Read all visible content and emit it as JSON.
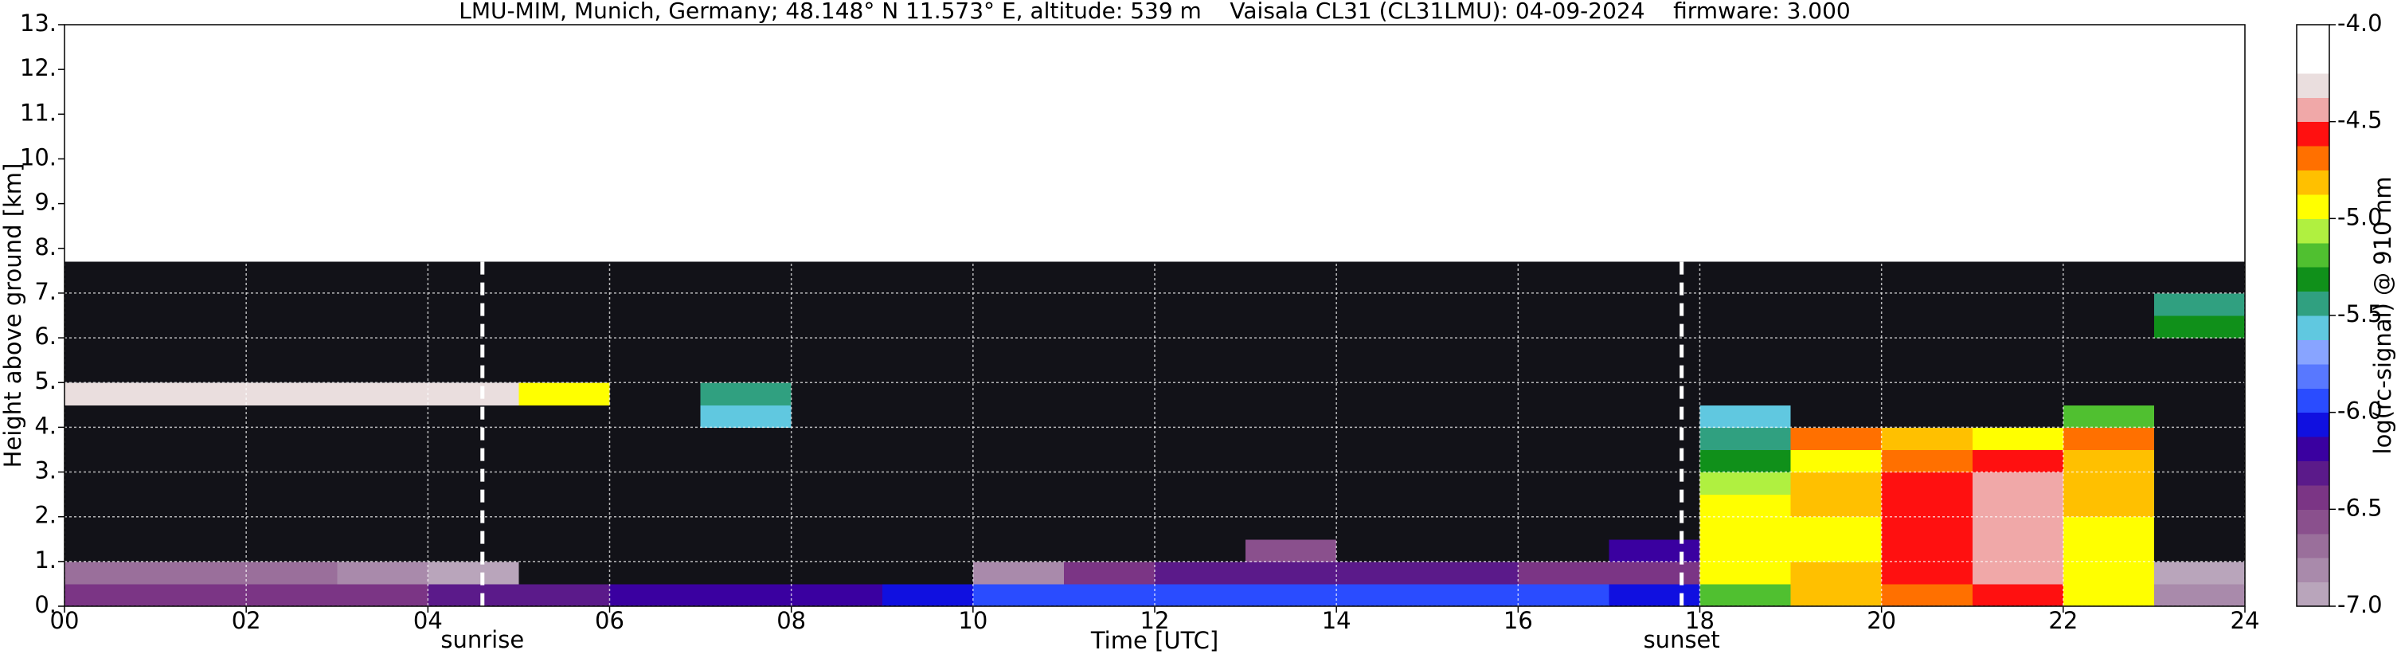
{
  "chart_data": {
    "type": "heatmap",
    "title": "LMU-MIM, Munich, Germany; 48.148° N 11.573° E, altitude: 539 m    Vaisala CL31 (CL31LMU): 04-09-2024    firmware: 3.000",
    "xlabel": "Time [UTC]",
    "ylabel": "Height above ground [km]",
    "colorbar_label": "log(rc-signal) @ 910 nm",
    "xlim": [
      0,
      24
    ],
    "xticks": [
      {
        "value": 0,
        "label": "00"
      },
      {
        "value": 2,
        "label": "02"
      },
      {
        "value": 4,
        "label": "04"
      },
      {
        "value": 6,
        "label": "06"
      },
      {
        "value": 8,
        "label": "08"
      },
      10,
      12,
      14,
      16,
      18,
      20,
      22,
      24
    ],
    "ylim": [
      0,
      13
    ],
    "yticks": [
      {
        "value": 0,
        "label": "0."
      },
      {
        "value": 1,
        "label": "1."
      },
      {
        "value": 2,
        "label": "2."
      },
      {
        "value": 3,
        "label": "3."
      },
      {
        "value": 4,
        "label": "4."
      },
      {
        "value": 5,
        "label": "5."
      },
      {
        "value": 6,
        "label": "6."
      },
      {
        "value": 7,
        "label": "7."
      },
      {
        "value": 8,
        "label": "8."
      },
      {
        "value": 9,
        "label": "9."
      },
      {
        "value": 10,
        "label": "10."
      },
      {
        "value": 11,
        "label": "11."
      },
      {
        "value": 12,
        "label": "12."
      },
      {
        "value": 13,
        "label": "13."
      }
    ],
    "clim": [
      -7,
      -4
    ],
    "cticks": [
      {
        "value": -4,
        "label": "-4.0"
      },
      {
        "value": -4.5,
        "label": "-4.5"
      },
      {
        "value": -5,
        "label": "-5.0"
      },
      {
        "value": -5.5,
        "label": "-5.5"
      },
      {
        "value": -6,
        "label": "-6.0"
      },
      {
        "value": -6.5,
        "label": "-6.5"
      },
      {
        "value": -7,
        "label": "-7.0"
      }
    ],
    "colors": [
      "#b9a5bb",
      "#a98aab",
      "#9a6f9b",
      "#8a508d",
      "#7b3585",
      "#5b1a8a",
      "#3a00a0",
      "#1010e0",
      "#2a4cff",
      "#5878ff",
      "#88a4ff",
      "#60c8e0",
      "#30a080",
      "#10901a",
      "#50c030",
      "#b0f040",
      "#ffff00",
      "#ffc000",
      "#ff7000",
      "#ff1010",
      "#f0a8a8",
      "#eadede",
      "#ffffff",
      "#ffffff"
    ],
    "under_color": "#121218",
    "grid": true,
    "x_bins": [
      0,
      1,
      2,
      3,
      4,
      5,
      6,
      7,
      8,
      9,
      10,
      11,
      12,
      13,
      14,
      15,
      16,
      17,
      18,
      19,
      20,
      21,
      22,
      23,
      24
    ],
    "y_bins": [
      0,
      0.5,
      1,
      1.5,
      2,
      2.5,
      3,
      3.5,
      4,
      4.5,
      5,
      5.5,
      6,
      6.5,
      7,
      7.5,
      7.7
    ],
    "z": [
      [
        -6.5,
        -6.5,
        -6.5,
        -6.4,
        -6.3,
        -6.3,
        -6.2,
        -6.2,
        -6.2,
        -6.1,
        -6.0,
        -6.0,
        -6.0,
        -6.0,
        -6.0,
        -6.0,
        -6.0,
        -6.1,
        -5.2,
        -4.8,
        -4.7,
        -4.6,
        -4.9,
        -6.8
      ],
      [
        -6.7,
        -6.7,
        -6.7,
        -6.8,
        -6.9,
        -7.2,
        -7.2,
        -7.2,
        -7.2,
        -7.2,
        -6.8,
        -6.4,
        -6.3,
        -6.3,
        -6.3,
        -6.3,
        -6.4,
        -6.5,
        -5.0,
        -4.8,
        -4.6,
        -4.5,
        -4.9,
        -6.9
      ],
      [
        -7.2,
        -7.2,
        -7.2,
        -7.2,
        -7.2,
        -7.2,
        -7.2,
        -7.2,
        -7.2,
        -7.2,
        -7.2,
        -7.2,
        -7.2,
        -6.6,
        -7.2,
        -7.2,
        -7.2,
        -6.2,
        -5.0,
        -4.9,
        -4.6,
        -4.5,
        -4.9,
        -7.2
      ],
      [
        -7.2,
        -7.2,
        -7.2,
        -7.2,
        -7.2,
        -7.2,
        -7.2,
        -7.2,
        -7.2,
        -7.2,
        -7.2,
        -7.2,
        -7.2,
        -7.2,
        -7.2,
        -7.2,
        -7.2,
        -7.2,
        -5.0,
        -4.9,
        -4.6,
        -4.5,
        -4.9,
        -7.2
      ],
      [
        -7.2,
        -7.2,
        -7.2,
        -7.2,
        -7.2,
        -7.2,
        -7.2,
        -7.2,
        -7.2,
        -7.2,
        -7.2,
        -7.2,
        -7.2,
        -7.2,
        -7.2,
        -7.2,
        -7.2,
        -7.2,
        -5.0,
        -4.8,
        -4.6,
        -4.5,
        -4.8,
        -7.2
      ],
      [
        -7.2,
        -7.2,
        -7.2,
        -7.2,
        -7.2,
        -7.2,
        -7.2,
        -7.2,
        -7.2,
        -7.2,
        -7.2,
        -7.2,
        -7.2,
        -7.2,
        -7.2,
        -7.2,
        -7.2,
        -7.2,
        -5.1,
        -4.8,
        -4.6,
        -4.5,
        -4.8,
        -7.2
      ],
      [
        -7.2,
        -7.2,
        -7.2,
        -7.2,
        -7.2,
        -7.2,
        -7.2,
        -7.2,
        -7.2,
        -7.2,
        -7.2,
        -7.2,
        -7.2,
        -7.2,
        -7.2,
        -7.2,
        -7.2,
        -7.2,
        -5.3,
        -4.9,
        -4.7,
        -4.6,
        -4.8,
        -7.2
      ],
      [
        -7.2,
        -7.2,
        -7.2,
        -7.2,
        -7.2,
        -7.2,
        -7.2,
        -7.2,
        -7.2,
        -7.2,
        -7.2,
        -7.2,
        -7.2,
        -7.2,
        -7.2,
        -7.2,
        -7.2,
        -7.2,
        -5.5,
        -4.7,
        -4.8,
        -5.0,
        -4.7,
        -7.2
      ],
      [
        -7.2,
        -7.2,
        -7.2,
        -7.2,
        -7.2,
        -7.2,
        -7.2,
        -5.6,
        -7.2,
        -7.2,
        -7.2,
        -7.2,
        -7.2,
        -7.2,
        -7.2,
        -7.2,
        -7.2,
        -7.2,
        -5.6,
        -7.2,
        -7.2,
        -7.2,
        -5.2,
        -7.2
      ],
      [
        -4.3,
        -4.3,
        -4.3,
        -4.3,
        -4.3,
        -5.0,
        -7.2,
        -5.4,
        -7.2,
        -7.2,
        -7.2,
        -7.2,
        -7.2,
        -7.2,
        -7.2,
        -7.2,
        -7.2,
        -7.2,
        -7.2,
        -7.2,
        -7.2,
        -7.2,
        -7.2,
        -7.2
      ],
      [
        -7.2,
        -7.2,
        -7.2,
        -7.2,
        -7.2,
        -7.2,
        -7.2,
        -7.2,
        -7.2,
        -7.2,
        -7.2,
        -7.2,
        -7.2,
        -7.2,
        -7.2,
        -7.2,
        -7.2,
        -7.2,
        -7.2,
        -7.2,
        -7.2,
        -7.2,
        -7.2,
        -7.2
      ],
      [
        -7.2,
        -7.2,
        -7.2,
        -7.2,
        -7.2,
        -7.2,
        -7.2,
        -7.2,
        -7.2,
        -7.2,
        -7.2,
        -7.2,
        -7.2,
        -7.2,
        -7.2,
        -7.2,
        -7.2,
        -7.2,
        -7.2,
        -7.2,
        -7.2,
        -7.2,
        -7.2,
        -7.2
      ],
      [
        -7.2,
        -7.2,
        -7.2,
        -7.2,
        -7.2,
        -7.2,
        -7.2,
        -7.2,
        -7.2,
        -7.2,
        -7.2,
        -7.2,
        -7.2,
        -7.2,
        -7.2,
        -7.2,
        -7.2,
        -7.2,
        -7.2,
        -7.2,
        -7.2,
        -7.2,
        -7.2,
        -5.3
      ],
      [
        -7.2,
        -7.2,
        -7.2,
        -7.2,
        -7.2,
        -7.2,
        -7.2,
        -7.2,
        -7.2,
        -7.2,
        -7.2,
        -7.2,
        -7.2,
        -7.2,
        -7.2,
        -7.2,
        -7.2,
        -7.2,
        -7.2,
        -7.2,
        -7.2,
        -7.2,
        -7.2,
        -5.4
      ],
      [
        -7.2,
        -7.2,
        -7.2,
        -7.2,
        -7.2,
        -7.2,
        -7.2,
        -7.2,
        -7.2,
        -7.2,
        -7.2,
        -7.2,
        -7.2,
        -7.2,
        -7.2,
        -7.2,
        -7.2,
        -7.2,
        -7.2,
        -7.2,
        -7.2,
        -7.2,
        -7.2,
        -7.2
      ],
      [
        -7.2,
        -7.2,
        -7.2,
        -7.2,
        -7.2,
        -7.2,
        -7.2,
        -7.2,
        -7.2,
        -7.2,
        -7.2,
        -7.2,
        -7.2,
        -7.2,
        -7.2,
        -7.2,
        -7.2,
        -7.2,
        -7.2,
        -7.2,
        -7.2,
        -7.2,
        -7.2,
        -7.2
      ]
    ],
    "markers": [
      {
        "x": 4.6,
        "label": "sunrise"
      },
      {
        "x": 17.8,
        "label": "sunset"
      }
    ]
  }
}
